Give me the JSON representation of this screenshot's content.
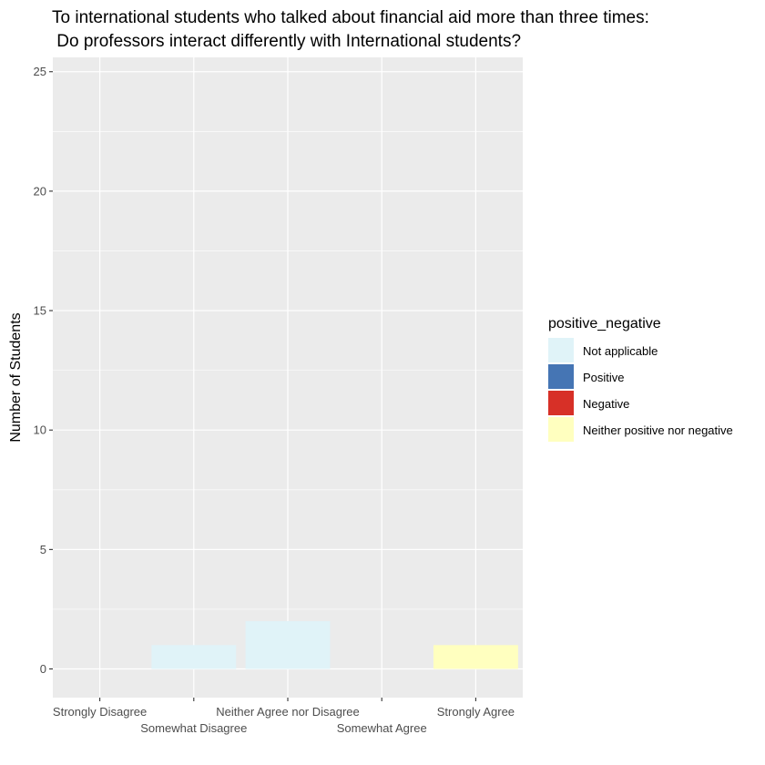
{
  "chart_data": {
    "type": "bar",
    "title": [
      "To international students who talked about financial aid more than three times:",
      " Do professors interact differently with International students?"
    ],
    "xlabel": "",
    "ylabel": "Number of Students",
    "ylim": [
      -1.2,
      25.6
    ],
    "yticks": [
      0,
      5,
      10,
      15,
      20,
      25
    ],
    "categories": [
      "Strongly Disagree",
      "Somewhat Disagree",
      "Neither Agree nor Disagree",
      "Somewhat Agree",
      "Strongly Agree"
    ],
    "series": [
      {
        "name": "Not applicable",
        "color": "#e0f3f8",
        "values": [
          0,
          1,
          2,
          0,
          0
        ]
      },
      {
        "name": "Positive",
        "color": "#4575b4",
        "values": [
          0,
          0,
          0,
          0,
          0
        ]
      },
      {
        "name": "Negative",
        "color": "#d73027",
        "values": [
          0,
          0,
          0,
          0,
          0
        ]
      },
      {
        "name": "Neither positive nor negative",
        "color": "#ffffbf",
        "values": [
          0,
          0,
          0,
          0,
          1
        ]
      }
    ],
    "stacked": true,
    "grid": true,
    "legend": {
      "title": "positive_negative",
      "placement": "right"
    }
  },
  "colors": {
    "panel_background": "#ebebeb",
    "gridline": "#ffffff"
  }
}
